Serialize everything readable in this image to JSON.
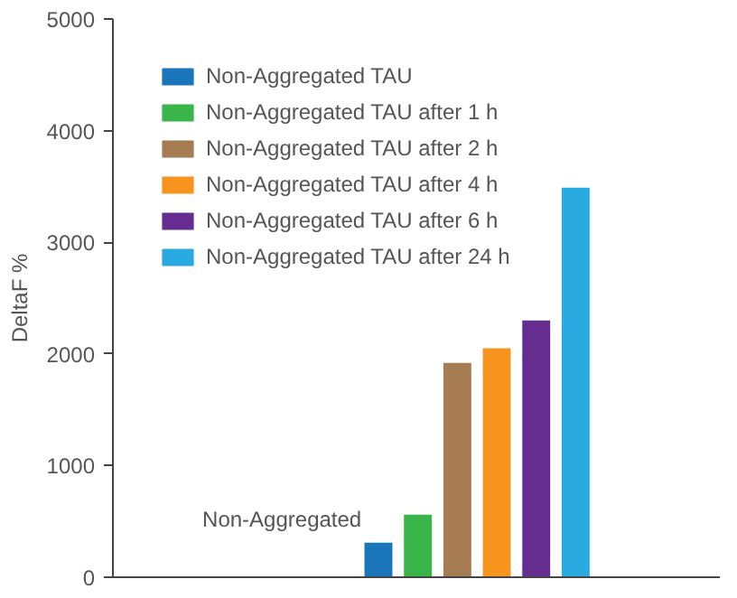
{
  "chart_data": {
    "type": "bar",
    "ylabel": "DeltaF %",
    "categories": [
      null
    ],
    "series": [
      {
        "name": "Non-Aggregated TAU",
        "color": "#1a75bb",
        "values": [
          310
        ]
      },
      {
        "name": "Non-Aggregated TAU after 1 h",
        "color": "#3ab54a",
        "values": [
          560
        ]
      },
      {
        "name": "Non-Aggregated TAU after 2 h",
        "color": "#a67c52",
        "values": [
          1920
        ]
      },
      {
        "name": "Non-Aggregated TAU after 4 h",
        "color": "#f7941d",
        "values": [
          2050
        ]
      },
      {
        "name": "Non-Aggregated TAU after 6 h",
        "color": "#662d91",
        "values": [
          2300
        ]
      },
      {
        "name": "Non-Aggregated TAU after 24 h",
        "color": "#29abe2",
        "values": [
          3490
        ]
      }
    ],
    "annotations": [
      "Non-Aggregated"
    ],
    "ylim": [
      0,
      5000
    ],
    "yticks": [
      0,
      1000,
      2000,
      3000,
      4000,
      5000
    ],
    "grid": false,
    "legend": "top left",
    "tick_labels": "y"
  }
}
